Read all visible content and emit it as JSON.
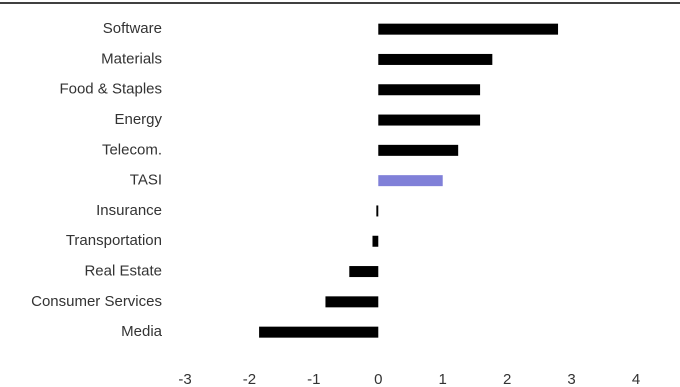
{
  "chart_data": {
    "type": "hbar",
    "categories": [
      "Software",
      "Materials",
      "Food & Staples",
      "Energy",
      "Telecom.",
      "TASI",
      "Insurance",
      "Transportation",
      "Real Estate",
      "Consumer Services",
      "Media"
    ],
    "values": [
      2.79,
      1.77,
      1.58,
      1.58,
      1.24,
      1.0,
      -0.03,
      -0.09,
      -0.45,
      -0.82,
      -1.85
    ],
    "colors": [
      "#000000",
      "#000000",
      "#000000",
      "#000000",
      "#000000",
      "#8080d8",
      "#000000",
      "#000000",
      "#000000",
      "#000000",
      "#000000"
    ],
    "xlim": [
      -3,
      4
    ],
    "xticks": [
      -3,
      -2,
      -1,
      0,
      1,
      2,
      3,
      4
    ],
    "grid": false
  }
}
